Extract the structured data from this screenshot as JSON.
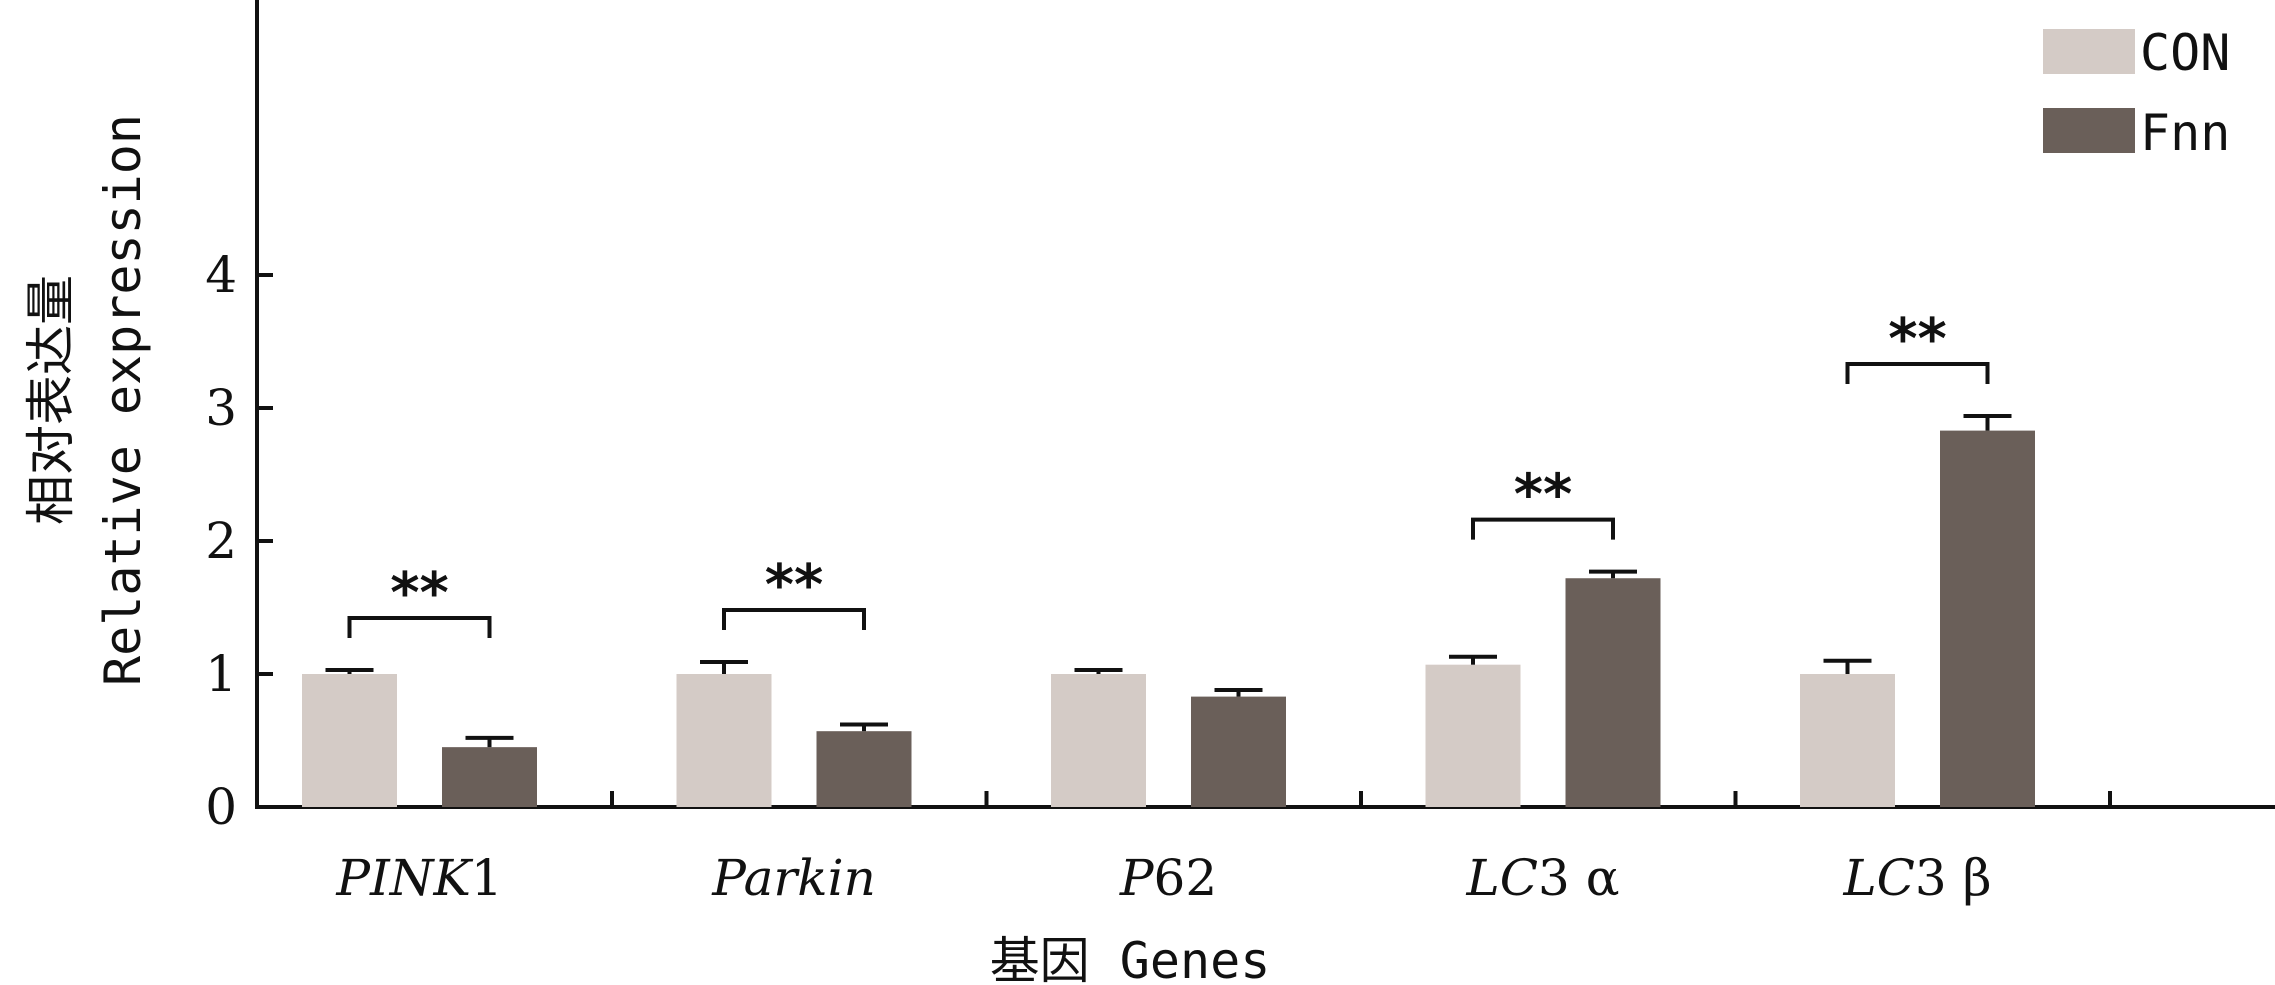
{
  "chart_data": {
    "type": "bar",
    "xlabel": "基因 Genes",
    "ylabel_cn": "相对表达量",
    "ylabel_en": "Relative expression",
    "ylim": [
      0,
      4
    ],
    "yticks": [
      "0",
      "1",
      "2",
      "3",
      "4"
    ],
    "grid": false,
    "legend_position": "top-right",
    "categories": [
      {
        "italic": "PINK",
        "plain": "1"
      },
      {
        "italic": "Parkin",
        "plain": ""
      },
      {
        "italic": "P",
        "plain": "62"
      },
      {
        "italic": "LC",
        "plain": "3 α"
      },
      {
        "italic": "LC",
        "plain": "3 β"
      }
    ],
    "series": [
      {
        "name": "CON",
        "color": "#d4cbc6",
        "values": [
          1.0,
          1.0,
          1.0,
          1.07,
          1.0
        ],
        "errors": [
          0.03,
          0.09,
          0.03,
          0.06,
          0.1
        ]
      },
      {
        "name": "Fnn",
        "color": "#6a5f59",
        "values": [
          0.45,
          0.57,
          0.83,
          1.72,
          2.83
        ],
        "errors": [
          0.07,
          0.05,
          0.05,
          0.05,
          0.11
        ]
      }
    ],
    "significance": [
      {
        "category_index": 0,
        "label": "**"
      },
      {
        "category_index": 1,
        "label": "**"
      },
      {
        "category_index": 3,
        "label": "**"
      },
      {
        "category_index": 4,
        "label": "**"
      }
    ]
  }
}
